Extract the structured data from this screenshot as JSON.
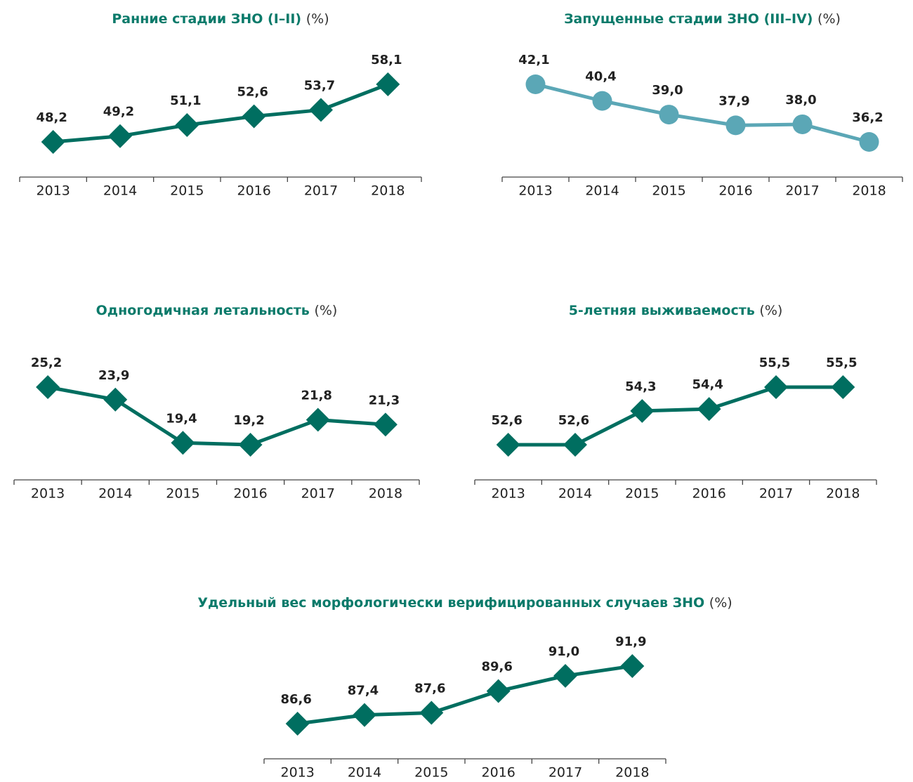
{
  "chart_data": [
    {
      "type": "line",
      "title": "Ранние стадии ЗНО (I–II)",
      "unit": "(%)",
      "categories": [
        "2013",
        "2014",
        "2015",
        "2016",
        "2017",
        "2018"
      ],
      "values": [
        48.2,
        49.2,
        51.1,
        52.6,
        53.7,
        58.1
      ],
      "value_labels": [
        "48,2",
        "49,2",
        "51,1",
        "52,6",
        "53,7",
        "58,1"
      ],
      "color": "#006e60",
      "marker": "diamond"
    },
    {
      "type": "line",
      "title": "Запущенные стадии ЗНО (III–IV)",
      "unit": "(%)",
      "categories": [
        "2013",
        "2014",
        "2015",
        "2016",
        "2017",
        "2018"
      ],
      "values": [
        42.1,
        40.4,
        39.0,
        37.9,
        38.0,
        36.2
      ],
      "value_labels": [
        "42,1",
        "40,4",
        "39,0",
        "37,9",
        "38,0",
        "36,2"
      ],
      "color": "#5ba7b6",
      "marker": "circle"
    },
    {
      "type": "line",
      "title": "Одногодичная летальность",
      "unit": "(%)",
      "categories": [
        "2013",
        "2014",
        "2015",
        "2016",
        "2017",
        "2018"
      ],
      "values": [
        25.2,
        23.9,
        19.4,
        19.2,
        21.8,
        21.3
      ],
      "value_labels": [
        "25,2",
        "23,9",
        "19,4",
        "19,2",
        "21,8",
        "21,3"
      ],
      "color": "#006e60",
      "marker": "diamond"
    },
    {
      "type": "line",
      "title": "5-летняя выживаемость",
      "unit": "(%)",
      "categories": [
        "2013",
        "2014",
        "2015",
        "2016",
        "2017",
        "2018"
      ],
      "values": [
        52.6,
        52.6,
        54.3,
        54.4,
        55.5,
        55.5
      ],
      "value_labels": [
        "52,6",
        "52,6",
        "54,3",
        "54,4",
        "55,5",
        "55,5"
      ],
      "color": "#006e60",
      "marker": "diamond"
    },
    {
      "type": "line",
      "title": "Удельный вес морфологически верифицированных случаев ЗНО",
      "unit": "(%)",
      "categories": [
        "2013",
        "2014",
        "2015",
        "2016",
        "2017",
        "2018"
      ],
      "values": [
        86.6,
        87.4,
        87.6,
        89.6,
        91.0,
        91.9
      ],
      "value_labels": [
        "86,6",
        "87,4",
        "87,6",
        "89,6",
        "91,0",
        "91,9"
      ],
      "color": "#006e60",
      "marker": "diamond"
    }
  ]
}
